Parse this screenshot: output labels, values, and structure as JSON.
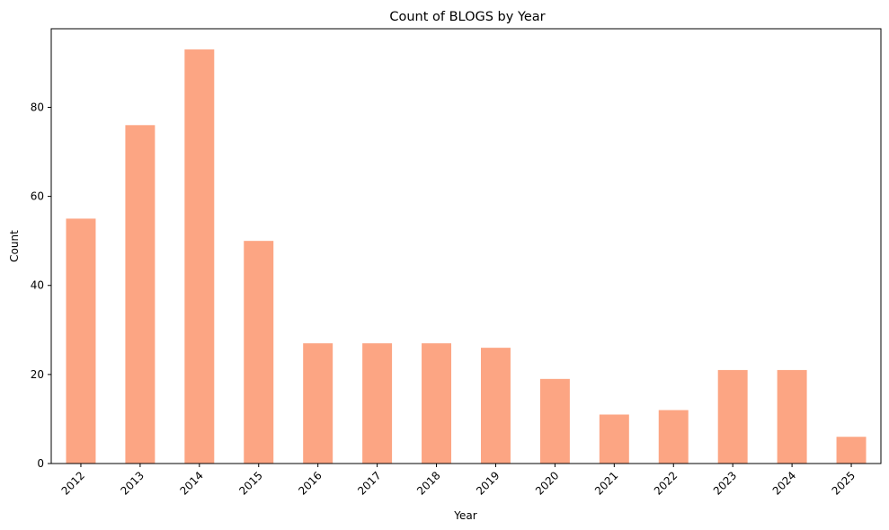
{
  "chart_data": {
    "type": "bar",
    "title": "Count of BLOGS by Year",
    "xlabel": "Year",
    "ylabel": "Count",
    "categories": [
      "2012",
      "2013",
      "2014",
      "2015",
      "2016",
      "2017",
      "2018",
      "2019",
      "2020",
      "2021",
      "2022",
      "2023",
      "2024",
      "2025"
    ],
    "values": [
      55,
      76,
      93,
      50,
      27,
      27,
      27,
      26,
      19,
      11,
      12,
      21,
      21,
      6
    ],
    "yticks": [
      "0",
      "20",
      "40",
      "60",
      "80"
    ],
    "ylim": [
      0,
      97.65
    ],
    "grid": false,
    "legend": "none",
    "bar_color": "#fca583",
    "x_tick_rotation_deg": 45
  }
}
